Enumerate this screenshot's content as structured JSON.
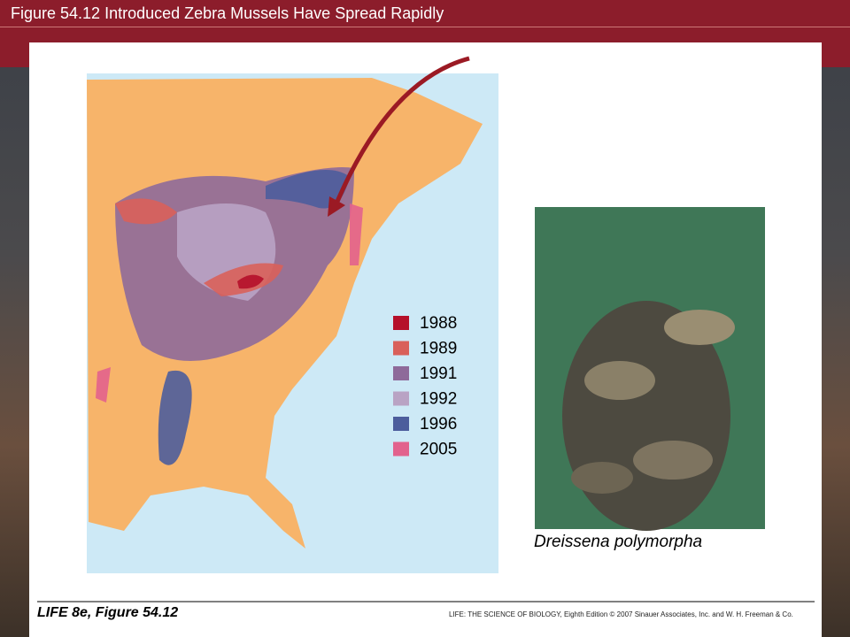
{
  "header": {
    "title": "Figure 54.12 Introduced Zebra Mussels Have Spread Rapidly"
  },
  "legend": [
    {
      "label": "1988",
      "color": "#b5102a"
    },
    {
      "label": "1989",
      "color": "#d9605a"
    },
    {
      "label": "1991",
      "color": "#8e6a9a"
    },
    {
      "label": "1992",
      "color": "#b9a3c4"
    },
    {
      "label": "1996",
      "color": "#4c5d9c"
    },
    {
      "label": "2005",
      "color": "#e2628d"
    }
  ],
  "photo": {
    "caption": "Dreissena polymorpha"
  },
  "footer": {
    "left": "LIFE 8e, Figure 54.12",
    "right": "LIFE: THE SCIENCE OF BIOLOGY, Eighth Edition  © 2007 Sinauer Associates, Inc. and W. H. Freeman & Co."
  }
}
